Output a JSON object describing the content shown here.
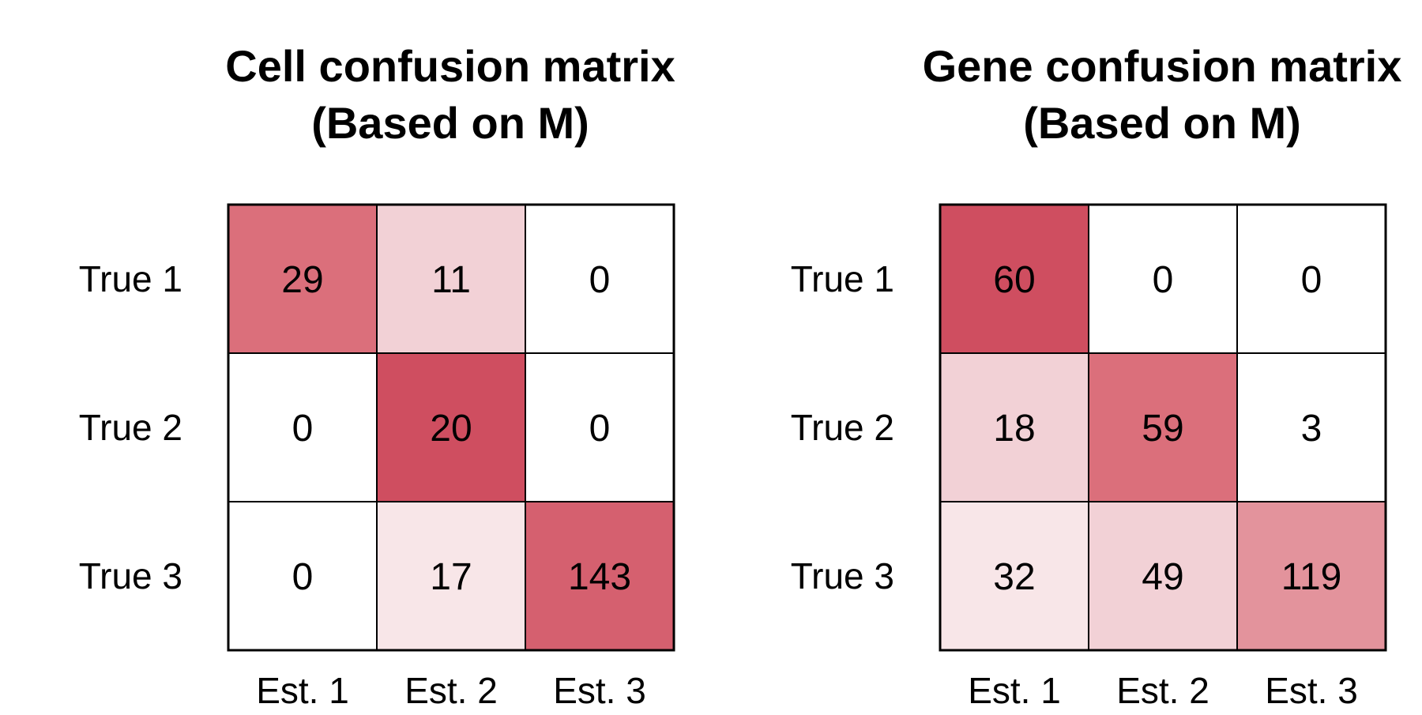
{
  "chart_data": [
    {
      "type": "heatmap",
      "title_lines": [
        "Cell confusion matrix",
        "(Based on M)"
      ],
      "rows": [
        "True 1",
        "True 2",
        "True 3"
      ],
      "columns": [
        "Est. 1",
        "Est. 2",
        "Est. 3"
      ],
      "values": [
        [
          29,
          11,
          0
        ],
        [
          0,
          20,
          0
        ],
        [
          0,
          17,
          143
        ]
      ],
      "cell_colors": [
        [
          "#db6f7b",
          "#f2d1d6",
          "#ffffff"
        ],
        [
          "#ffffff",
          "#cf4e60",
          "#ffffff"
        ],
        [
          "#ffffff",
          "#f8e6e8",
          "#d5606f"
        ]
      ]
    },
    {
      "type": "heatmap",
      "title_lines": [
        "Gene confusion matrix",
        "(Based on M)"
      ],
      "rows": [
        "True 1",
        "True 2",
        "True 3"
      ],
      "columns": [
        "Est. 1",
        "Est. 2",
        "Est. 3"
      ],
      "values": [
        [
          60,
          0,
          0
        ],
        [
          18,
          59,
          3
        ],
        [
          32,
          49,
          119
        ]
      ],
      "cell_colors": [
        [
          "#cf4e60",
          "#ffffff",
          "#ffffff"
        ],
        [
          "#f2d1d6",
          "#db6f7b",
          "#ffffff"
        ],
        [
          "#f8e6e8",
          "#f2d1d6",
          "#e3939c"
        ]
      ]
    }
  ]
}
